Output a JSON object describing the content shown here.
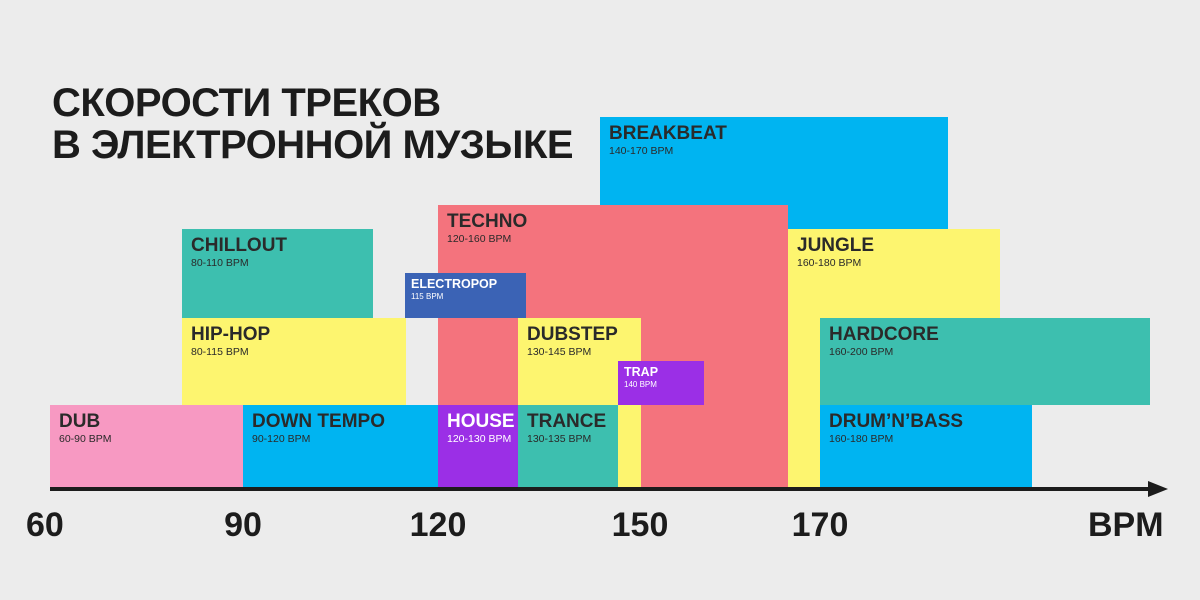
{
  "chart_data": {
    "type": "range-bar",
    "title": [
      "Скорости треков",
      "в электронной музыке"
    ],
    "x_unit": "BPM",
    "x_ticks": [
      60,
      90,
      120,
      150,
      170
    ],
    "genres": [
      {
        "name": "Dub",
        "range": "60-90 BPM",
        "min": 60,
        "max": 90,
        "color": "#f799c2",
        "text_color": "#2a2a2a",
        "level": 0
      },
      {
        "name": "Down tempo",
        "range": "90-120 BPM",
        "min": 90,
        "max": 120,
        "color": "#00b4f1",
        "text_color": "#2a2a2a",
        "level": 0
      },
      {
        "name": "House",
        "range": "120-130 BPM",
        "min": 120,
        "max": 130,
        "color": "#9b2fe6",
        "text_color": "#ffffff",
        "level": 0
      },
      {
        "name": "Trance",
        "range": "130-135 BPM",
        "min": 130,
        "max": 135,
        "color": "#3dbfaf",
        "text_color": "#2a2a2a",
        "level": 0
      },
      {
        "name": "Drum’n’bass",
        "range": "160-180 BPM",
        "min": 160,
        "max": 180,
        "color": "#00b4f1",
        "text_color": "#2a2a2a",
        "level": 0
      },
      {
        "name": "Hip-hop",
        "range": "80-115 BPM",
        "min": 80,
        "max": 115,
        "color": "#fdf56f",
        "text_color": "#2a2a2a",
        "level": 1
      },
      {
        "name": "Dubstep",
        "range": "130-145 BPM",
        "min": 130,
        "max": 145,
        "color": "#fdf56f",
        "text_color": "#2a2a2a",
        "level": 1
      },
      {
        "name": "Trap",
        "range": "140 BPM",
        "min": 140,
        "max": 140,
        "color": "#9b2fe6",
        "text_color": "#ffffff",
        "level": 1
      },
      {
        "name": "Hardcore",
        "range": "160-200 BPM",
        "min": 160,
        "max": 200,
        "color": "#3dbfaf",
        "text_color": "#2a2a2a",
        "level": 1
      },
      {
        "name": "Chillout",
        "range": "80-110 BPM",
        "min": 80,
        "max": 110,
        "color": "#3dbfaf",
        "text_color": "#2a2a2a",
        "level": 2
      },
      {
        "name": "Electropop",
        "range": "115 BPM",
        "min": 115,
        "max": 115,
        "color": "#3b63b5",
        "text_color": "#ffffff",
        "level": 2
      },
      {
        "name": "Jungle",
        "range": "160-180 BPM",
        "min": 160,
        "max": 180,
        "color": "#fdf56f",
        "text_color": "#2a2a2a",
        "level": 2
      },
      {
        "name": "Techno",
        "range": "120-160 BPM",
        "min": 120,
        "max": 160,
        "color": "#f4737d",
        "text_color": "#2a2a2a",
        "level": 3
      },
      {
        "name": "Breakbeat",
        "range": "140-170 BPM",
        "min": 140,
        "max": 170,
        "color": "#00b4f1",
        "text_color": "#2a2a2a",
        "level": 4
      }
    ]
  }
}
